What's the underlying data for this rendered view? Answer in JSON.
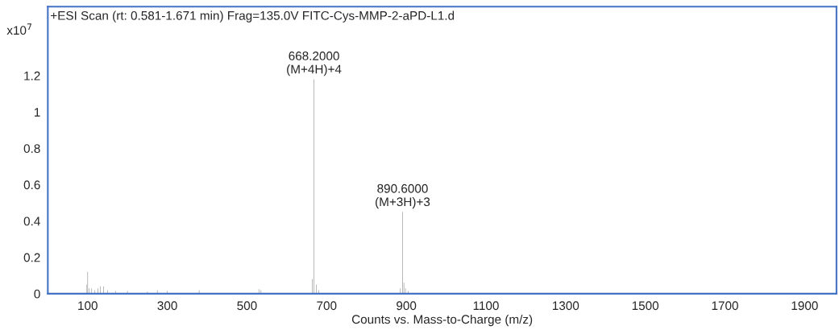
{
  "chart_data": {
    "type": "bar",
    "title": "+ESI Scan (rt: 0.581-1.671 min) Frag=135.0V FITC-Cys-MMP-2-aPD-L1.d",
    "xlabel": "Counts vs. Mass-to-Charge (m/z)",
    "ylabel": "x10$^{7}$",
    "x": [
      98,
      100,
      104,
      110,
      118,
      126,
      132,
      140,
      150,
      170,
      200,
      250,
      275,
      300,
      380,
      530,
      535,
      664,
      668.2,
      674,
      680,
      885,
      890.6,
      894,
      898,
      905
    ],
    "series": [
      {
        "color": "#a6a6a6",
        "values": [
          0.05,
          0.12,
          0.03,
          0.03,
          0.02,
          0.03,
          0.04,
          0.04,
          0.02,
          0.015,
          0.015,
          0.012,
          0.02,
          0.015,
          0.02,
          0.025,
          0.02,
          0.08,
          1.18,
          0.05,
          0.02,
          0.03,
          0.45,
          0.06,
          0.03,
          0.015
        ]
      }
    ],
    "xlim": [
      0,
      1980
    ],
    "xticks": [
      100,
      300,
      500,
      700,
      900,
      1100,
      1300,
      1500,
      1700,
      1900
    ],
    "ylim": [
      0,
      1.58
    ],
    "yticks": [
      0,
      0.2,
      0.4,
      0.6,
      0.8,
      1,
      1.2
    ],
    "annotations": [
      {
        "text": "668.2000\n(M+4H)+4",
        "x": 668.2,
        "y": 1.18
      },
      {
        "text": "890.6000\n(M+3H)+3",
        "x": 890.6,
        "y": 0.45
      }
    ]
  }
}
